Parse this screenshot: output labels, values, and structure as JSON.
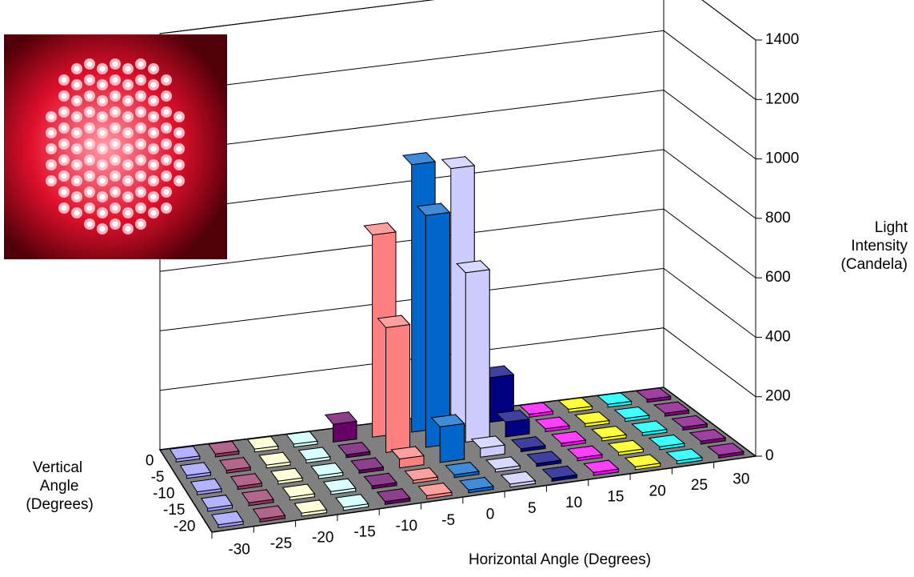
{
  "chart_data": {
    "type": "bar3d",
    "x_label": "Horizontal Angle (Degrees)",
    "depth_label": "Vertical Angle (Degrees)",
    "y_label": "Light Intensity (Candela)",
    "categories": [
      -30,
      -25,
      -20,
      -15,
      -10,
      -5,
      0,
      5,
      10,
      15,
      20,
      25,
      30
    ],
    "colors": [
      "#9999ff",
      "#993366",
      "#ffffcc",
      "#ccffff",
      "#660066",
      "#ff8080",
      "#0066cc",
      "#ccccff",
      "#000080",
      "#ff00ff",
      "#ffff00",
      "#00ffff",
      "#800080"
    ],
    "series": [
      {
        "name": "0",
        "values": [
          10,
          10,
          10,
          10,
          60,
          680,
          900,
          870,
          150,
          10,
          10,
          10,
          10
        ]
      },
      {
        "name": "-5",
        "values": [
          10,
          10,
          10,
          10,
          10,
          420,
          780,
          570,
          50,
          10,
          10,
          10,
          10
        ]
      },
      {
        "name": "-10",
        "values": [
          10,
          10,
          10,
          10,
          10,
          30,
          120,
          30,
          10,
          10,
          10,
          10,
          10
        ]
      },
      {
        "name": "-15",
        "values": [
          10,
          10,
          10,
          10,
          10,
          10,
          10,
          10,
          10,
          10,
          10,
          10,
          10
        ]
      },
      {
        "name": "-20",
        "values": [
          10,
          10,
          10,
          10,
          10,
          10,
          10,
          10,
          10,
          10,
          10,
          10,
          10
        ]
      }
    ],
    "ylim": [
      0,
      1400
    ],
    "yticks": [
      0,
      200,
      400,
      600,
      800,
      1000,
      1200,
      1400
    ],
    "grid": true
  }
}
